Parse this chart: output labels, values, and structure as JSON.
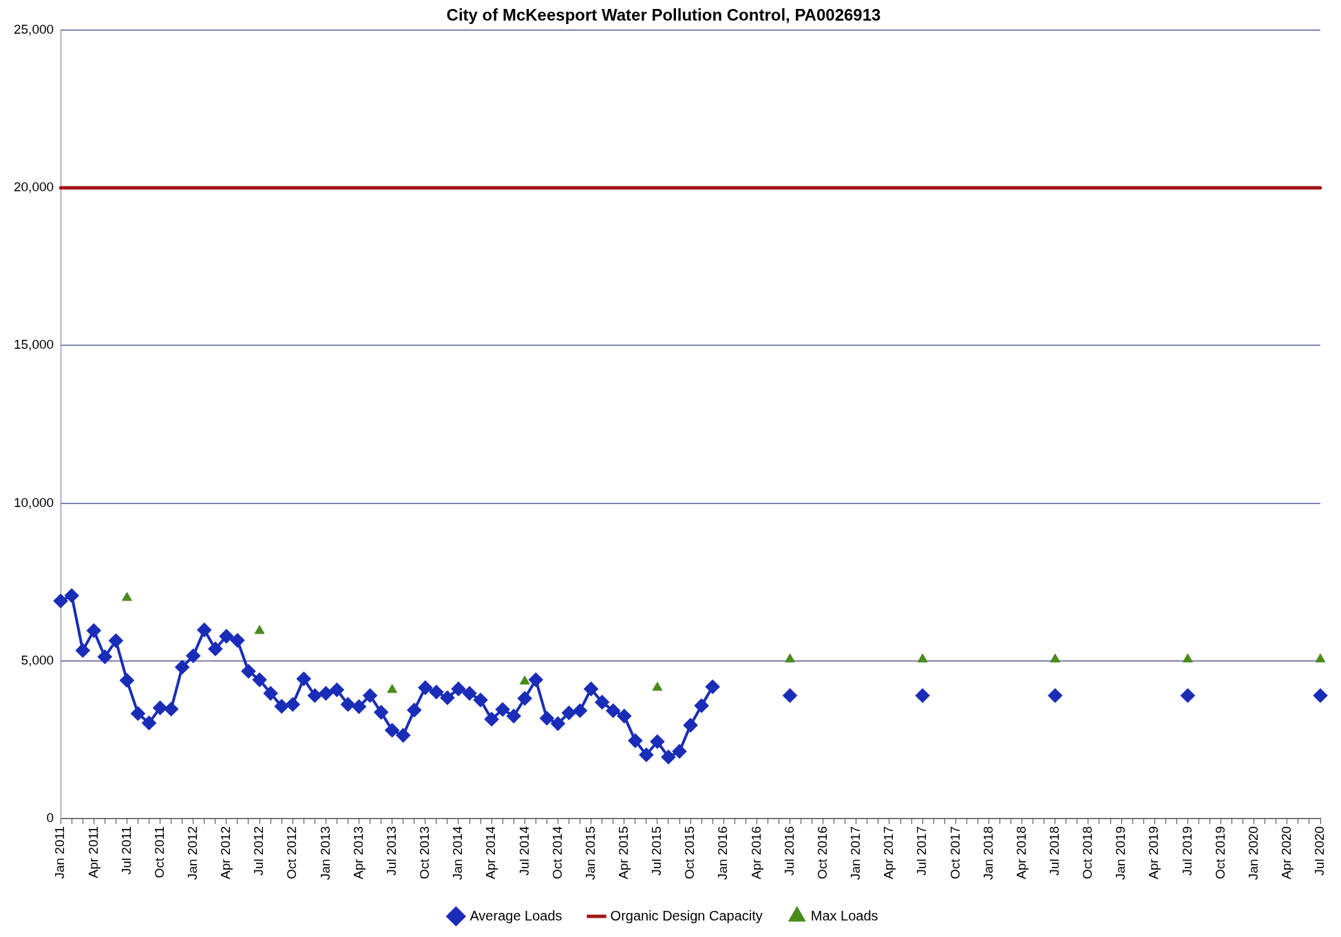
{
  "chart_data": {
    "type": "line",
    "title": "City of McKeesport Water Pollution Control, PA0026913",
    "categories": [
      "Jan 2011",
      null,
      null,
      "Apr 2011",
      null,
      null,
      "Jul 2011",
      null,
      null,
      "Oct 2011",
      null,
      null,
      "Jan 2012",
      null,
      null,
      "Apr 2012",
      null,
      null,
      "Jul 2012",
      null,
      null,
      "Oct 2012",
      null,
      null,
      "Jan 2013",
      null,
      null,
      "Apr 2013",
      null,
      null,
      "Jul 2013",
      null,
      null,
      "Oct 2013",
      null,
      null,
      "Jan 2014",
      null,
      null,
      "Apr 2014",
      null,
      null,
      "Jul 2014",
      null,
      null,
      "Oct 2014",
      null,
      null,
      "Jan 2015",
      null,
      null,
      "Apr 2015",
      null,
      null,
      "Jul 2015",
      null,
      null,
      "Oct 2015",
      null,
      null,
      "Jan 2016",
      null,
      null,
      "Apr 2016",
      null,
      null,
      "Jul 2016",
      null,
      null,
      "Oct 2016",
      null,
      null,
      "Jan 2017",
      null,
      null,
      "Apr 2017",
      null,
      null,
      "Jul 2017",
      null,
      null,
      "Oct 2017",
      null,
      null,
      "Jan 2018",
      null,
      null,
      "Apr 2018",
      null,
      null,
      "Jul 2018",
      null,
      null,
      "Oct 2018",
      null,
      null,
      "Jan 2019",
      null,
      null,
      "Apr 2019",
      null,
      null,
      "Jul 2019",
      null,
      null,
      "Oct 2019",
      null,
      null,
      "Jan 2020",
      null,
      null,
      "Apr 2020",
      null,
      null,
      "Jul 2020"
    ],
    "series": [
      {
        "name": "Average Loads",
        "type": "line",
        "marker": "diamond",
        "color": "#1a2db8",
        "values": [
          6900,
          7070,
          5330,
          5960,
          5130,
          5640,
          4380,
          3330,
          3030,
          3510,
          3470,
          4800,
          5160,
          5980,
          5380,
          5780,
          5650,
          4670,
          4400,
          3970,
          3560,
          3620,
          4430,
          3900,
          3970,
          4080,
          3620,
          3550,
          3900,
          3370,
          2800,
          2640,
          3440,
          4150,
          4010,
          3830,
          4110,
          3970,
          3760,
          3150,
          3460,
          3250,
          3810,
          4400,
          3180,
          3010,
          3350,
          3420,
          4110,
          3690,
          3420,
          3250,
          2470,
          2020,
          2440,
          1950,
          2130,
          2960,
          3580,
          4180,
          null,
          null,
          null,
          null,
          null,
          null,
          3900,
          null,
          null,
          null,
          null,
          null,
          null,
          null,
          null,
          null,
          null,
          null,
          3900,
          null,
          null,
          null,
          null,
          null,
          null,
          null,
          null,
          null,
          null,
          null,
          3900,
          null,
          null,
          null,
          null,
          null,
          null,
          null,
          null,
          null,
          null,
          null,
          3900,
          null,
          null,
          null,
          null,
          null,
          null,
          null,
          null,
          null,
          null,
          null,
          3900
        ]
      },
      {
        "name": "Organic Design Capacity",
        "type": "line",
        "marker": "none",
        "color": "#a01414",
        "values": [
          20000,
          20000,
          20000,
          20000,
          20000,
          20000,
          20000,
          20000,
          20000,
          20000,
          20000,
          20000,
          20000,
          20000,
          20000,
          20000,
          20000,
          20000,
          20000,
          20000,
          20000,
          20000,
          20000,
          20000,
          20000,
          20000,
          20000,
          20000,
          20000,
          20000,
          20000,
          20000,
          20000,
          20000,
          20000,
          20000,
          20000,
          20000,
          20000,
          20000,
          20000,
          20000,
          20000,
          20000,
          20000,
          20000,
          20000,
          20000,
          20000,
          20000,
          20000,
          20000,
          20000,
          20000,
          20000,
          20000,
          20000,
          20000,
          20000,
          20000,
          20000,
          20000,
          20000,
          20000,
          20000,
          20000,
          20000,
          20000,
          20000,
          20000,
          20000,
          20000,
          20000,
          20000,
          20000,
          20000,
          20000,
          20000,
          20000,
          20000,
          20000,
          20000,
          20000,
          20000,
          20000,
          20000,
          20000,
          20000,
          20000,
          20000,
          20000,
          20000,
          20000,
          20000,
          20000,
          20000,
          20000,
          20000,
          20000,
          20000,
          20000,
          20000,
          20000,
          20000,
          20000,
          20000,
          20000,
          20000,
          20000,
          20000,
          20000,
          20000,
          20000,
          20000,
          20000
        ]
      },
      {
        "name": "Max Loads",
        "type": "scatter",
        "marker": "triangle",
        "color": "#4a8c1c",
        "values": [
          null,
          null,
          null,
          null,
          null,
          null,
          7000,
          null,
          null,
          null,
          null,
          null,
          null,
          null,
          null,
          null,
          null,
          null,
          5950,
          null,
          null,
          null,
          null,
          null,
          null,
          null,
          null,
          null,
          null,
          null,
          4080,
          null,
          null,
          null,
          null,
          null,
          null,
          null,
          null,
          null,
          null,
          null,
          4350,
          null,
          null,
          null,
          null,
          null,
          null,
          null,
          null,
          null,
          null,
          null,
          4150,
          null,
          null,
          null,
          null,
          null,
          null,
          null,
          null,
          null,
          null,
          null,
          5050,
          null,
          null,
          null,
          null,
          null,
          null,
          null,
          null,
          null,
          null,
          null,
          5050,
          null,
          null,
          null,
          null,
          null,
          null,
          null,
          null,
          null,
          null,
          null,
          5050,
          null,
          null,
          null,
          null,
          null,
          null,
          null,
          null,
          null,
          null,
          null,
          5050,
          null,
          null,
          null,
          null,
          null,
          null,
          null,
          null,
          null,
          null,
          null,
          5050
        ]
      }
    ],
    "ylim": [
      0,
      25000
    ],
    "yticks": [
      {
        "value": 0,
        "label": "0"
      },
      {
        "value": 5000,
        "label": "5,000"
      },
      {
        "value": 10000,
        "label": "10,000"
      },
      {
        "value": 15000,
        "label": "15,000"
      },
      {
        "value": 20000,
        "label": "20,000"
      },
      {
        "value": 25000,
        "label": "25,000"
      }
    ],
    "grid": "y",
    "legend": "bottom"
  }
}
